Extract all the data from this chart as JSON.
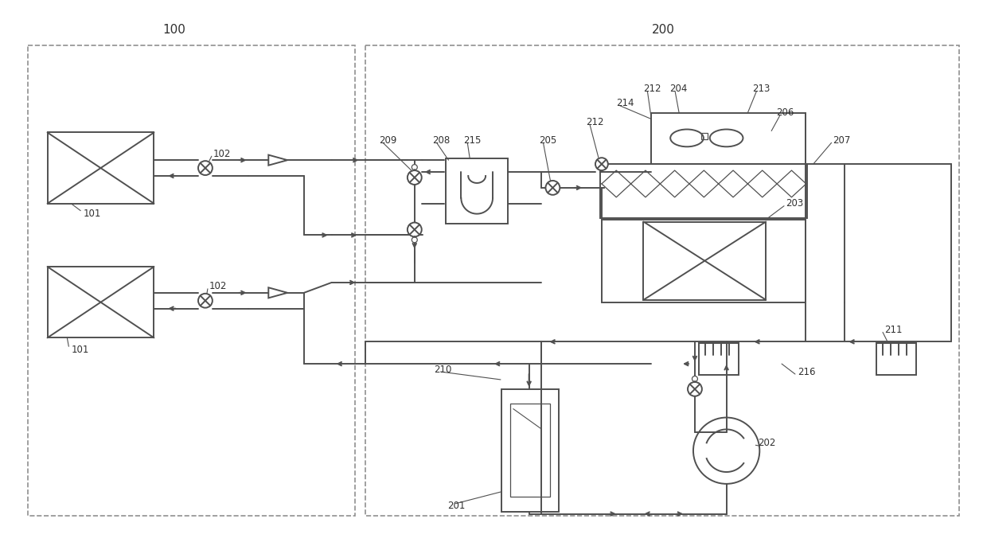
{
  "bg": "#ffffff",
  "lc": "#505050",
  "dc": "#909090",
  "tc": "#303030",
  "lw": 1.4,
  "figsize": [
    12.4,
    6.91
  ],
  "dpi": 100
}
